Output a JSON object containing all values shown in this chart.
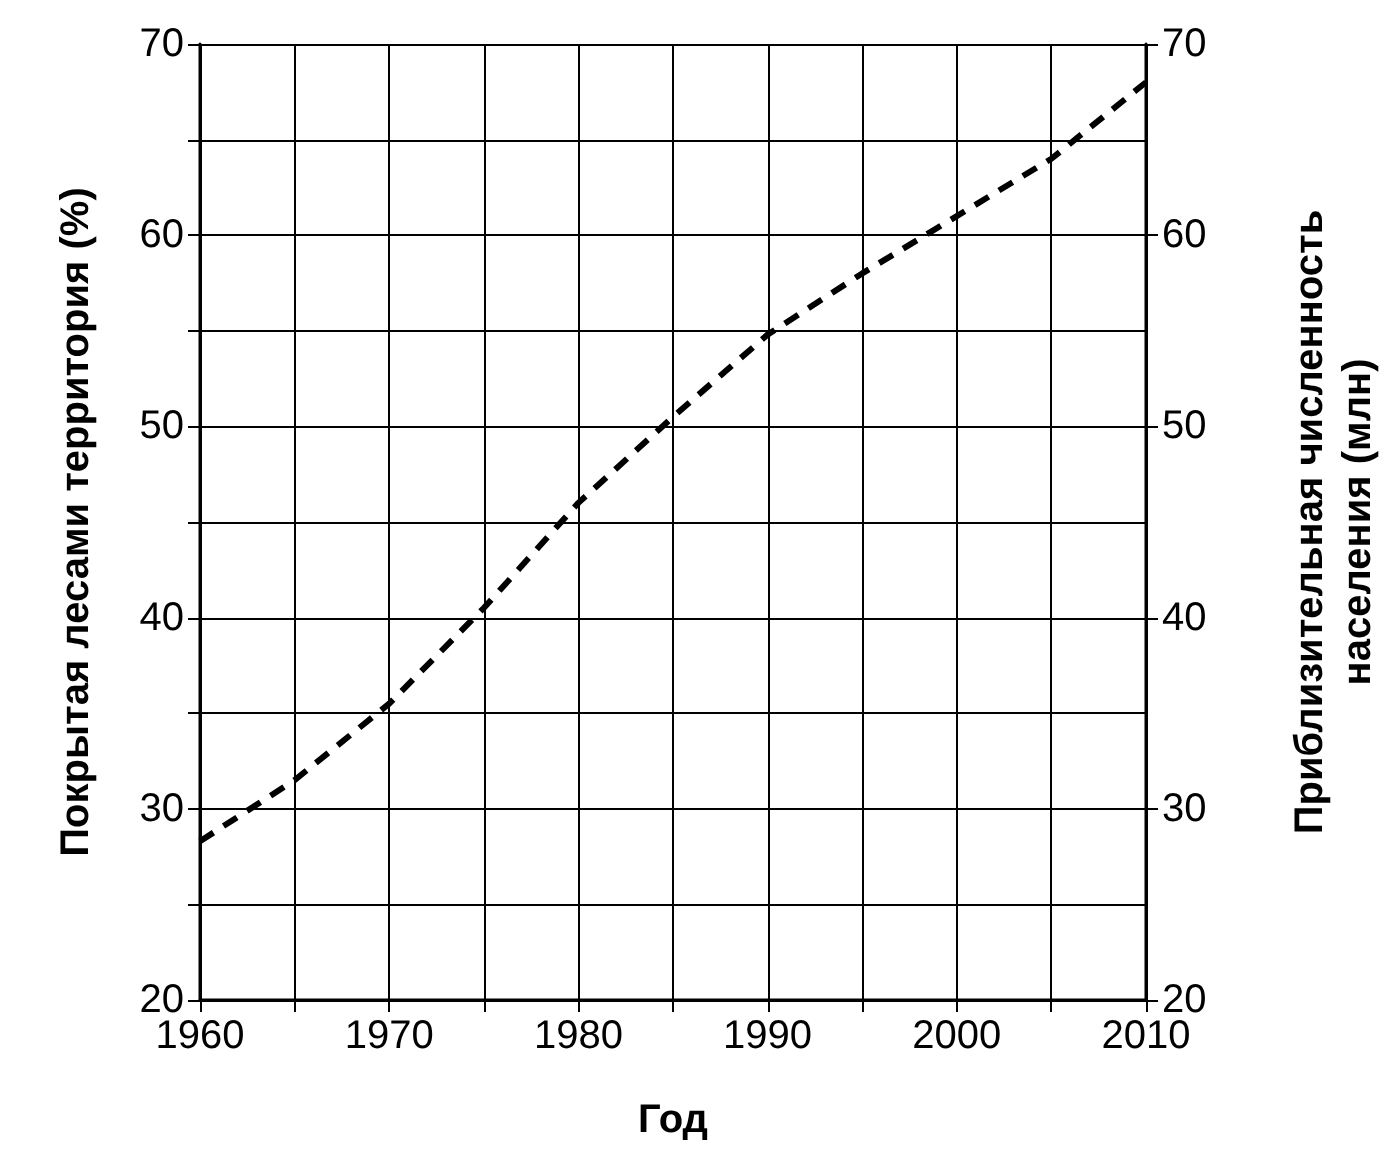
{
  "chart_data": {
    "type": "line",
    "xlabel": "Год",
    "ylabel": "Покрытая лесами территория (%)",
    "y2label": "Приблизительная численность населения (млн)",
    "x": [
      1960,
      1965,
      1970,
      1975,
      1980,
      1985,
      1990,
      1995,
      2000,
      2005,
      2010
    ],
    "series": [
      {
        "color": "#000000",
        "line_style": "dashed",
        "values": [
          28.3,
          31.5,
          35.5,
          40.5,
          46,
          50.5,
          54.8,
          58,
          61,
          64,
          68
        ]
      }
    ],
    "xlim": [
      1960,
      2010
    ],
    "xticks": [
      1960,
      {
        "value": 1965,
        "label": null
      },
      1970,
      {
        "value": 1975,
        "label": null
      },
      1980,
      {
        "value": 1985,
        "label": null
      },
      1990,
      {
        "value": 1995,
        "label": null
      },
      2000,
      {
        "value": 2005,
        "label": null
      },
      2010
    ],
    "ylim": [
      20,
      70
    ],
    "yticks": [
      20,
      {
        "value": 25,
        "label": null
      },
      30,
      {
        "value": 35,
        "label": null
      },
      40,
      {
        "value": 45,
        "label": null
      },
      50,
      {
        "value": 55,
        "label": null
      },
      60,
      {
        "value": 65,
        "label": null
      },
      70
    ],
    "y2lim": [
      20,
      70
    ],
    "y2ticks": [
      20,
      30,
      40,
      50,
      60,
      70
    ],
    "grid": true,
    "marker": "none"
  }
}
